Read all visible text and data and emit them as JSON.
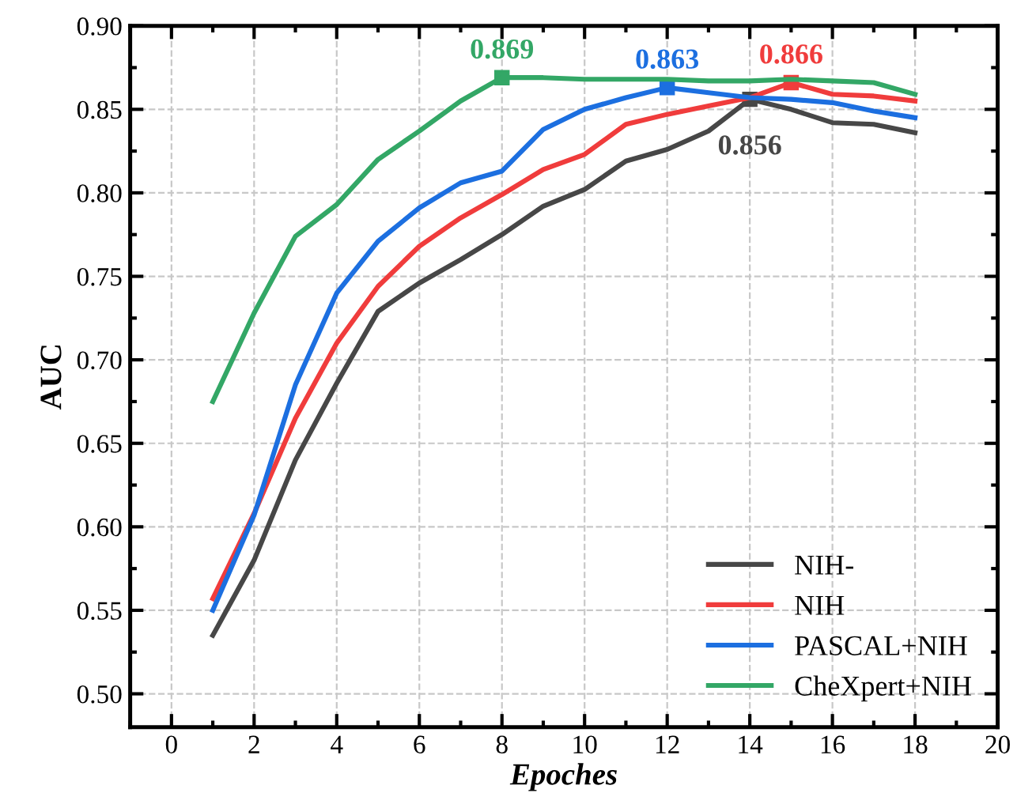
{
  "chart_data": {
    "type": "line",
    "xlabel": "Epoches",
    "ylabel": "AUC",
    "x": [
      1,
      2,
      3,
      4,
      5,
      6,
      7,
      8,
      9,
      10,
      11,
      12,
      13,
      14,
      15,
      16,
      17,
      18
    ],
    "series": [
      {
        "name": "NIH-",
        "color": "#474747",
        "values": [
          0.535,
          0.58,
          0.64,
          0.686,
          0.729,
          0.746,
          0.76,
          0.775,
          0.792,
          0.802,
          0.819,
          0.826,
          0.837,
          0.856,
          0.85,
          0.842,
          0.841,
          0.836
        ]
      },
      {
        "name": "NIH",
        "color": "#f03c3c",
        "values": [
          0.557,
          0.608,
          0.665,
          0.71,
          0.744,
          0.768,
          0.785,
          0.799,
          0.814,
          0.823,
          0.841,
          0.847,
          0.852,
          0.857,
          0.866,
          0.859,
          0.858,
          0.855
        ]
      },
      {
        "name": "PASCAL+NIH",
        "color": "#1c6fe0",
        "values": [
          0.55,
          0.607,
          0.685,
          0.74,
          0.771,
          0.791,
          0.806,
          0.813,
          0.838,
          0.85,
          0.857,
          0.863,
          0.86,
          0.857,
          0.856,
          0.854,
          0.849,
          0.845
        ]
      },
      {
        "name": "CheXpert+NIH",
        "color": "#33a766",
        "values": [
          0.675,
          0.728,
          0.774,
          0.793,
          0.82,
          0.837,
          0.855,
          0.869,
          0.869,
          0.868,
          0.868,
          0.868,
          0.867,
          0.867,
          0.868,
          0.867,
          0.866,
          0.859
        ]
      }
    ],
    "annotations": [
      {
        "text": "0.869",
        "x": 8,
        "y": 0.869
      },
      {
        "text": "0.863",
        "x": 12,
        "y": 0.863
      },
      {
        "text": "0.866",
        "x": 15,
        "y": 0.866
      },
      {
        "text": "0.856",
        "x": 14,
        "y": 0.856
      }
    ],
    "xlim": [
      -1,
      20
    ],
    "xticks": [
      0,
      2,
      4,
      6,
      8,
      10,
      12,
      14,
      16,
      18,
      20
    ],
    "ylim": [
      0.48,
      0.9
    ],
    "yticks": [
      {
        "value": 0.5,
        "label": "0.50"
      },
      {
        "value": 0.55,
        "label": "0.55"
      },
      {
        "value": 0.6,
        "label": "0.60"
      },
      {
        "value": 0.65,
        "label": "0.65"
      },
      {
        "value": 0.7,
        "label": "0.70"
      },
      {
        "value": 0.75,
        "label": "0.75"
      },
      {
        "value": 0.8,
        "label": "0.80"
      },
      {
        "value": 0.85,
        "label": "0.85"
      },
      {
        "value": 0.9,
        "label": "0.90"
      }
    ],
    "grid": true,
    "legend": "bottom right",
    "line_style": "solid"
  }
}
